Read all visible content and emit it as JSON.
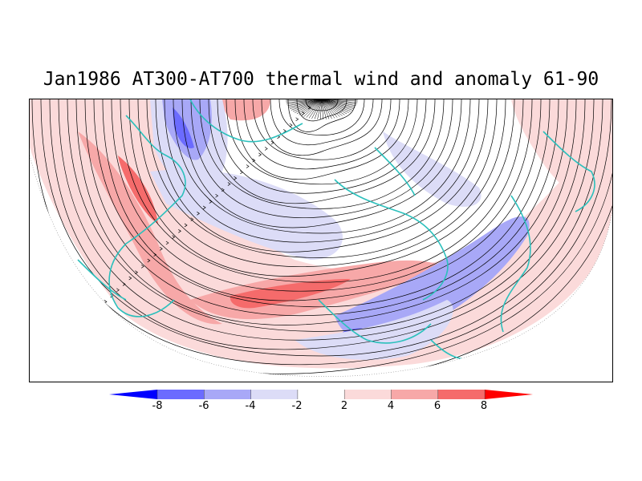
{
  "title": "Jan1986 AT300-AT700 thermal wind and anomaly 61-90",
  "colors": {
    "neg8": "#0000ff",
    "neg6": "#6b6bff",
    "neg4": "#a8a8f7",
    "neg2": "#dcdcf7",
    "zero": "#ffffff",
    "pos2": "#fbdada",
    "pos4": "#f7a8a8",
    "pos6": "#f56b6b",
    "pos8": "#ff0000",
    "coast": "#2cc0bc",
    "streamline": "#000000"
  },
  "colorbar": {
    "tick_labels": [
      "-8",
      "-6",
      "-4",
      "-2",
      "2",
      "4",
      "6",
      "8"
    ]
  },
  "anomaly_regions": [
    {
      "name": "arctic-blue-core",
      "level": "neg8"
    },
    {
      "name": "scandinavia-red",
      "level": "pos6"
    },
    {
      "name": "central-asia-blue",
      "level": "neg4"
    },
    {
      "name": "atlantic-jet-red",
      "level": "pos6"
    },
    {
      "name": "pacific-blue",
      "level": "neg4"
    },
    {
      "name": "east-asia-blue-band",
      "level": "neg4"
    },
    {
      "name": "canada-red",
      "level": "pos4"
    }
  ]
}
